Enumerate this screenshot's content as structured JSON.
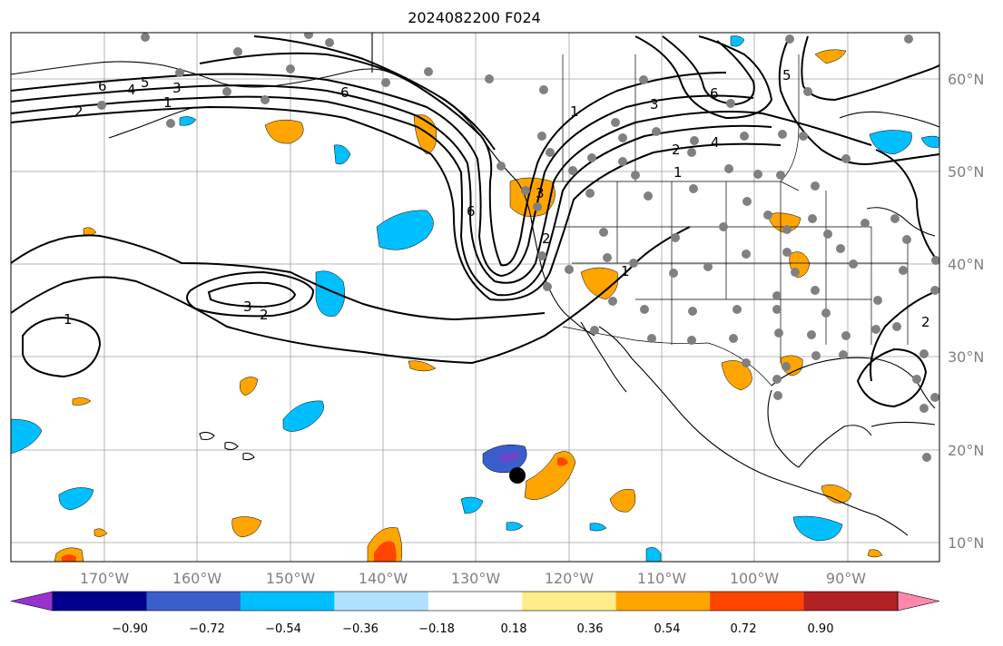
{
  "title": "2024082200 F024",
  "lon_ticks": [
    "170°W",
    "160°W",
    "150°W",
    "140°W",
    "130°W",
    "120°W",
    "110°W",
    "100°W",
    "90°W"
  ],
  "lat_ticks": [
    "60°N",
    "50°N",
    "40°N",
    "30°N",
    "20°N",
    "10°N"
  ],
  "colorbar": {
    "ticks": [
      "−0.90",
      "−0.72",
      "−0.54",
      "−0.36",
      "−0.18",
      "0.18",
      "0.36",
      "0.54",
      "0.72",
      "0.90"
    ],
    "colors": [
      "#9932cc",
      "#00008b",
      "#3a5fcd",
      "#00bfff",
      "#b0e2ff",
      "#ffffff",
      "#ffec8b",
      "#ffa500",
      "#ff4500",
      "#b22222",
      "#ff88aa"
    ]
  },
  "contour_labels": [
    "6",
    "4",
    "5",
    "2",
    "1",
    "3",
    "6",
    "1",
    "3",
    "6",
    "5",
    "4",
    "2",
    "1",
    "6",
    "2",
    "3",
    "2",
    "1",
    "3",
    "1",
    "2"
  ],
  "colors": {
    "coast": "#000000",
    "grid": "#a0a0a0",
    "station": "#808080",
    "positive": "#ffa500",
    "negative": "#00bfff"
  }
}
